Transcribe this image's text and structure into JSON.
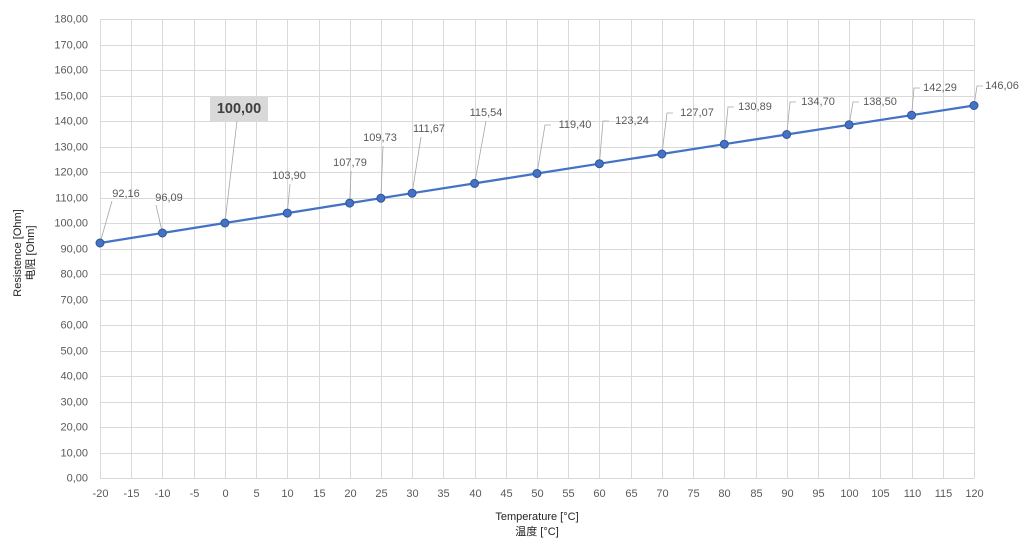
{
  "chart_data": {
    "type": "line",
    "x": [
      -20,
      -10,
      0,
      10,
      20,
      25,
      30,
      40,
      50,
      60,
      70,
      80,
      90,
      100,
      110,
      120
    ],
    "series": [
      {
        "values": [
          92.16,
          96.09,
          100.0,
          103.9,
          107.79,
          109.73,
          111.67,
          115.54,
          119.4,
          123.24,
          127.07,
          130.89,
          134.7,
          138.5,
          142.29,
          146.06
        ],
        "data_labels": [
          "92,16",
          "96,09",
          "100,00",
          "103,90",
          "107,79",
          "109,73",
          "111,67",
          "115,54",
          "119,40",
          "123,24",
          "127,07",
          "130,89",
          "134,70",
          "138,50",
          "142,29",
          "146,06"
        ],
        "color": "#4472c4"
      }
    ],
    "highlighted_x": [
      0
    ],
    "xlabel": [
      "Temperature [°C]",
      "温度 [°C]"
    ],
    "ylabel": [
      "Resistence [Ohm]",
      "电阻 [Ohm]"
    ],
    "xlim": [
      -20,
      120
    ],
    "ylim": [
      0,
      180
    ],
    "xticks": [
      "-20",
      "-15",
      "-10",
      "-5",
      "0",
      "5",
      "10",
      "15",
      "20",
      "25",
      "30",
      "35",
      "40",
      "45",
      "50",
      "55",
      "60",
      "65",
      "70",
      "75",
      "80",
      "85",
      "90",
      "95",
      "100",
      "105",
      "110",
      "115",
      "120"
    ],
    "yticks": [
      "0,00",
      "10,00",
      "20,00",
      "30,00",
      "40,00",
      "50,00",
      "60,00",
      "70,00",
      "80,00",
      "90,00",
      "100,00",
      "110,00",
      "120,00",
      "130,00",
      "140,00",
      "150,00",
      "160,00",
      "170,00",
      "180,00"
    ],
    "grid": true,
    "colors": {
      "grid": "#d9d9d9",
      "leader": "#a6a6a6",
      "marker_edge": "#2f5597",
      "highlight_box": "#d9d9d9"
    }
  }
}
